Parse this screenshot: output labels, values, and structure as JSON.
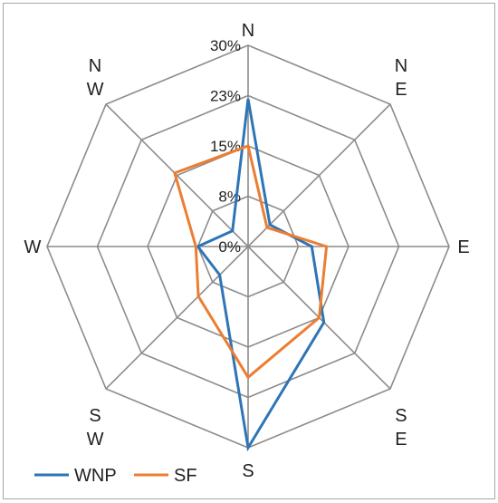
{
  "chart_data": {
    "type": "radar",
    "title": "",
    "categories": [
      "N",
      "NE",
      "E",
      "SE",
      "S",
      "SW",
      "W",
      "NW"
    ],
    "category_labels": [
      [
        "N"
      ],
      [
        "N",
        "E"
      ],
      [
        "E"
      ],
      [
        "S",
        "E"
      ],
      [
        "S"
      ],
      [
        "S",
        "W"
      ],
      [
        "W"
      ],
      [
        "N",
        "W"
      ]
    ],
    "radial_ticks": [
      "0%",
      "8%",
      "15%",
      "23%",
      "30%"
    ],
    "radial_max": 30,
    "grid": true,
    "legend_position": "bottom-left",
    "series": [
      {
        "name": "WNP",
        "color": "#2e75b6",
        "values": [
          22.0,
          4.6,
          9.5,
          16.0,
          30.0,
          6.0,
          7.5,
          3.3
        ]
      },
      {
        "name": "SF",
        "color": "#ed7d31",
        "values": [
          15.0,
          4.0,
          11.7,
          15.0,
          19.5,
          10.5,
          7.8,
          15.5
        ]
      }
    ]
  }
}
